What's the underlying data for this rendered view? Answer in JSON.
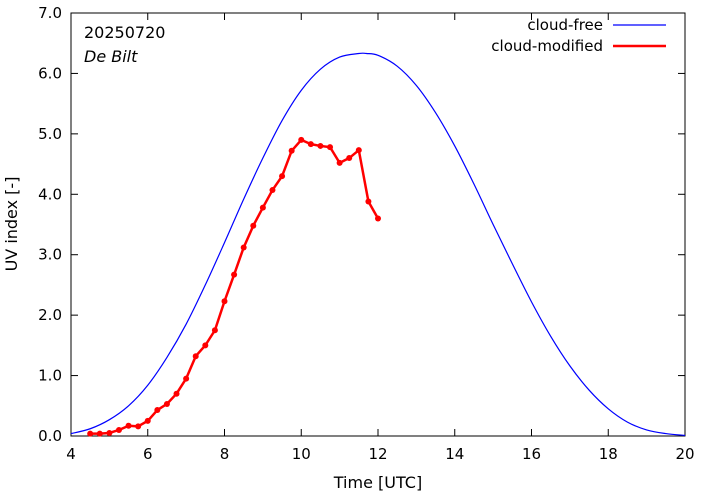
{
  "chart_data": {
    "type": "line",
    "xlabel": "Time  [UTC]",
    "ylabel": "UV index  [-]",
    "xlim": [
      4,
      20
    ],
    "ylim": [
      0,
      7
    ],
    "x_ticks": [
      4,
      6,
      8,
      10,
      12,
      14,
      16,
      18,
      20
    ],
    "x_tick_labels": [
      "4",
      "6",
      "8",
      "10",
      "12",
      "14",
      "16",
      "18",
      "20"
    ],
    "y_ticks": [
      0,
      1,
      2,
      3,
      4,
      5,
      6,
      7
    ],
    "y_tick_labels": [
      "0.0",
      "1.0",
      "2.0",
      "3.0",
      "4.0",
      "5.0",
      "6.0",
      "7.0"
    ],
    "grid": false,
    "legend_position": "top-right",
    "annotations": {
      "date": "20250720",
      "station": "De Bilt"
    },
    "series": [
      {
        "name": "cloud-free",
        "color": "#0000ff",
        "style": "line",
        "x": [
          4.0,
          4.5,
          5.0,
          5.5,
          6.0,
          6.5,
          7.0,
          7.5,
          8.0,
          8.5,
          9.0,
          9.5,
          10.0,
          10.5,
          11.0,
          11.5,
          11.7,
          12.0,
          12.5,
          13.0,
          13.5,
          14.0,
          14.5,
          15.0,
          15.5,
          16.0,
          16.5,
          17.0,
          17.5,
          18.0,
          18.5,
          19.0,
          19.5,
          20.0
        ],
        "y": [
          0.04,
          0.12,
          0.27,
          0.5,
          0.84,
          1.3,
          1.85,
          2.5,
          3.2,
          3.92,
          4.6,
          5.22,
          5.72,
          6.07,
          6.27,
          6.33,
          6.33,
          6.3,
          6.12,
          5.8,
          5.35,
          4.8,
          4.17,
          3.5,
          2.85,
          2.22,
          1.65,
          1.16,
          0.76,
          0.45,
          0.23,
          0.1,
          0.04,
          0.01
        ]
      },
      {
        "name": "cloud-modified",
        "color": "#ff0000",
        "style": "line-points",
        "x": [
          4.5,
          4.75,
          5.0,
          5.25,
          5.5,
          5.75,
          6.0,
          6.25,
          6.5,
          6.75,
          7.0,
          7.25,
          7.5,
          7.75,
          8.0,
          8.25,
          8.5,
          8.75,
          9.0,
          9.25,
          9.5,
          9.75,
          10.0,
          10.25,
          10.5,
          10.75,
          11.0,
          11.25,
          11.5,
          11.75,
          12.0
        ],
        "y": [
          0.04,
          0.04,
          0.05,
          0.1,
          0.17,
          0.16,
          0.25,
          0.43,
          0.53,
          0.7,
          0.95,
          1.32,
          1.5,
          1.75,
          2.23,
          2.67,
          3.12,
          3.48,
          3.78,
          4.07,
          4.3,
          4.72,
          4.9,
          4.83,
          4.8,
          4.78,
          4.52,
          4.6,
          4.73,
          3.88,
          3.6
        ]
      }
    ]
  }
}
